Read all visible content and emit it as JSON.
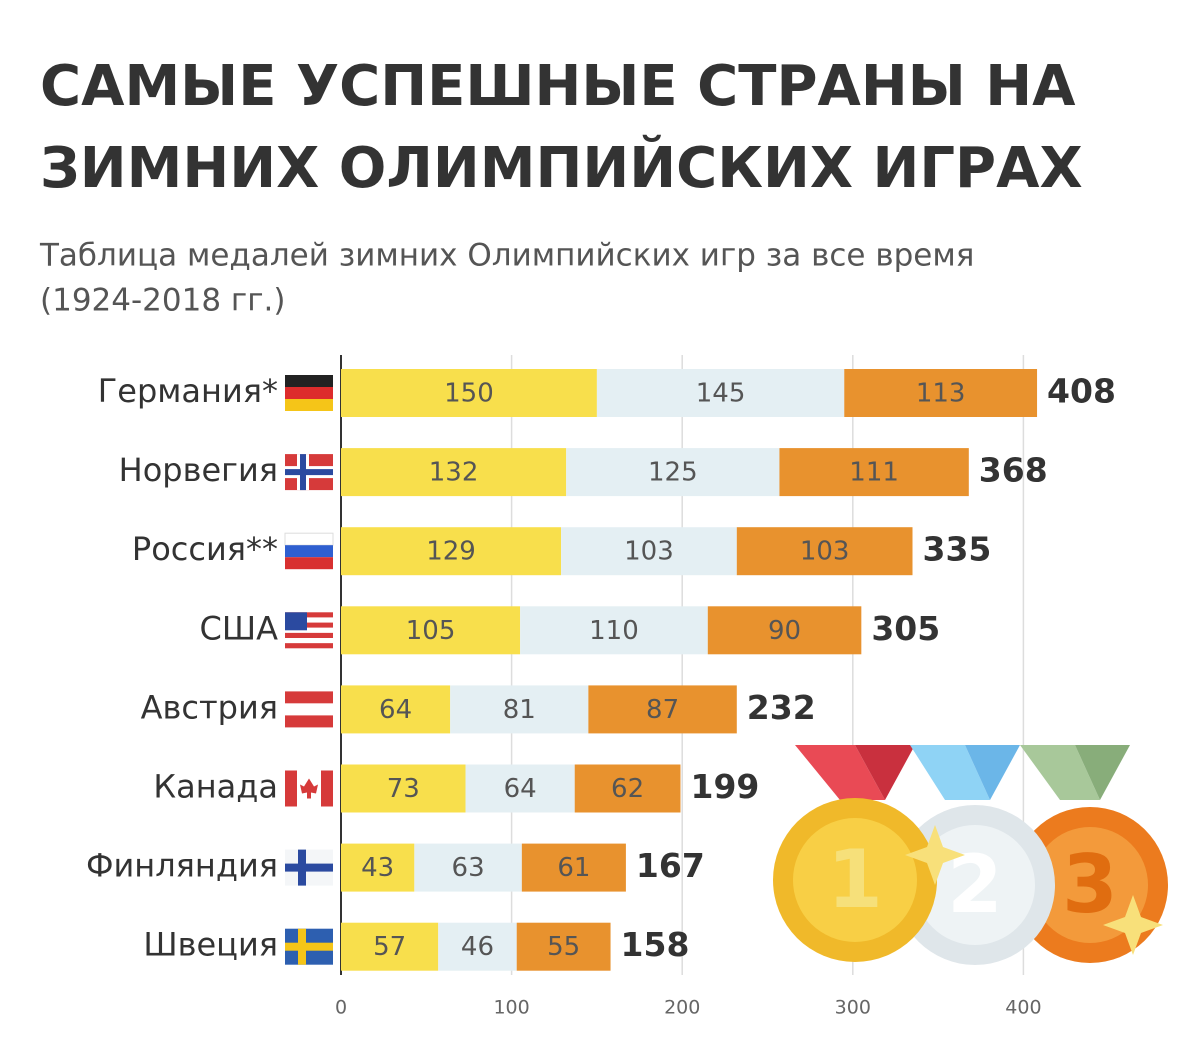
{
  "chart_data": {
    "type": "stacked-bar-horizontal",
    "title": [
      "САМЫЕ УСПЕШНЫЕ СТРАНЫ НА",
      "ЗИМНИХ ОЛИМПИЙСКИХ ИГРАХ"
    ],
    "subtitle": [
      "Таблица медалей зимних Олимпийских игр за все время",
      "(1924-2018 гг.)"
    ],
    "categories": [
      "Германия*",
      "Норвегия",
      "Россия**",
      "США",
      "Австрия",
      "Канада",
      "Финляндия",
      "Швеция"
    ],
    "series": [
      {
        "color": "#f8df4c",
        "values": [
          150,
          132,
          129,
          105,
          64,
          73,
          43,
          57
        ]
      },
      {
        "color": "#e4eff3",
        "values": [
          145,
          125,
          103,
          110,
          81,
          64,
          63,
          46
        ]
      },
      {
        "color": "#e8922e",
        "values": [
          113,
          111,
          103,
          90,
          87,
          62,
          61,
          55
        ]
      }
    ],
    "totals": [
      408,
      368,
      335,
      305,
      232,
      199,
      167,
      158
    ],
    "xlim": [
      0,
      500
    ],
    "xticks": [
      0,
      100,
      200,
      300,
      400
    ],
    "grid": true
  }
}
